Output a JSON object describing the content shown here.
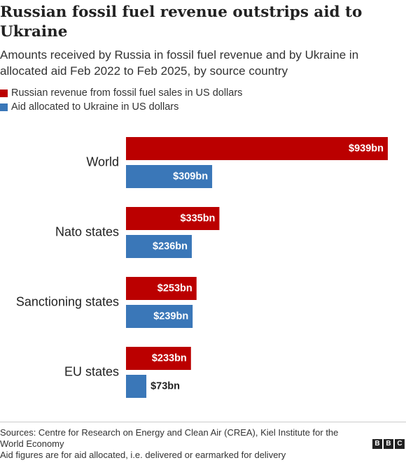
{
  "title": "Russian fossil fuel revenue outstrips aid to Ukraine",
  "subtitle": "Amounts received by Russia in fossil fuel revenue and by Ukraine in allocated aid Feb 2022 to Feb 2025, by source country",
  "colors": {
    "russia": "#bb0000",
    "ukraine": "#3a77b8"
  },
  "chart_data": {
    "type": "bar",
    "orientation": "horizontal",
    "categories": [
      "World",
      "Nato states",
      "Sanctioning states",
      "EU states"
    ],
    "series": [
      {
        "name": "Russian revenue from fossil fuel sales in US dollars",
        "values": [
          939,
          335,
          253,
          233
        ],
        "labels": [
          "$939bn",
          "$335bn",
          "$253bn",
          "$233bn"
        ],
        "color": "#bb0000"
      },
      {
        "name": "Aid allocated to Ukraine in US dollars",
        "values": [
          309,
          236,
          239,
          73
        ],
        "labels": [
          "$309bn",
          "$236bn",
          "$239bn",
          "$73bn"
        ],
        "color": "#3a77b8"
      }
    ],
    "unit": "US$ billions",
    "xlim": [
      0,
      939
    ],
    "legend": "top-left",
    "grid": false
  },
  "footer": {
    "sources": "Sources: Centre for Research on Energy and Clean Air (CREA), Kiel Institute for the World Economy",
    "note": "Aid figures are for aid allocated, i.e. delivered or earmarked for delivery"
  },
  "logo": {
    "letters": [
      "B",
      "B",
      "C"
    ]
  }
}
